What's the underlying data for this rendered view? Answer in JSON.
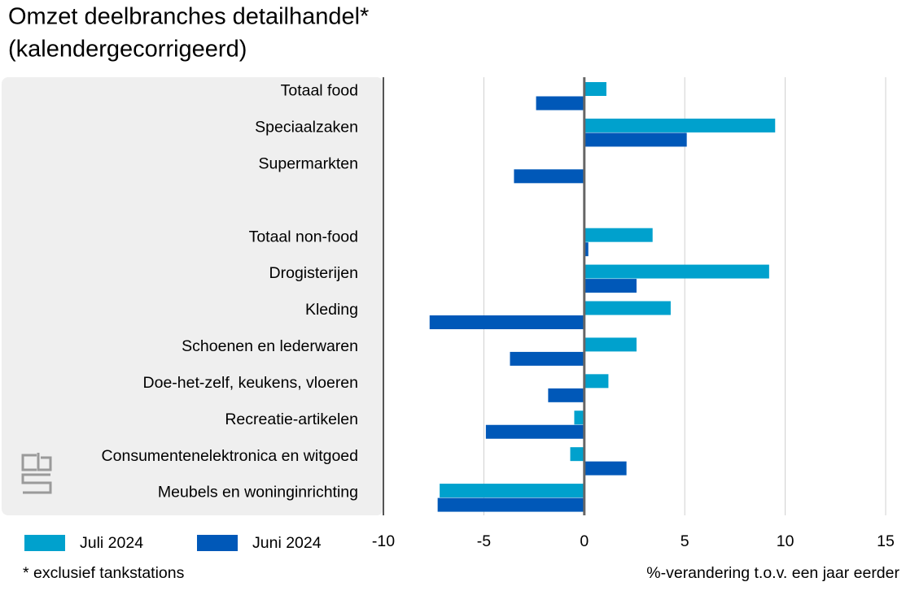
{
  "chart_data": {
    "type": "hbar",
    "title": "Omzet deelbranches detailhandel*",
    "subtitle": "(kalendergecorrigeerd)",
    "categories": [
      "Totaal food",
      "Speciaalzaken",
      "Supermarkten",
      null,
      "Totaal non-food",
      "Drogisterijen",
      "Kleding",
      "Schoenen en lederwaren",
      "Doe-het-zelf, keukens, vloeren",
      "Recreatie-artikelen",
      "Consumentenelektronica en witgoed",
      "Meubels en woninginrichting"
    ],
    "series": [
      {
        "name": "Juli 2024",
        "color": "#00a1cd",
        "values": [
          1.1,
          9.5,
          0,
          null,
          3.4,
          9.2,
          4.3,
          2.6,
          1.2,
          -0.5,
          -0.7,
          -7.2
        ]
      },
      {
        "name": "Juni 2024",
        "color": "#0058b8",
        "values": [
          -2.4,
          5.1,
          -3.5,
          null,
          0.2,
          2.6,
          -7.7,
          -3.7,
          -1.8,
          -4.9,
          2.1,
          -7.3
        ]
      }
    ],
    "xlim": [
      -10,
      15
    ],
    "xticks": [
      -10,
      -5,
      0,
      5,
      10,
      15
    ],
    "grid": true,
    "xlabel": "%-verandering t.o.v. een jaar eerder",
    "note": "* exclusief tankstations"
  }
}
